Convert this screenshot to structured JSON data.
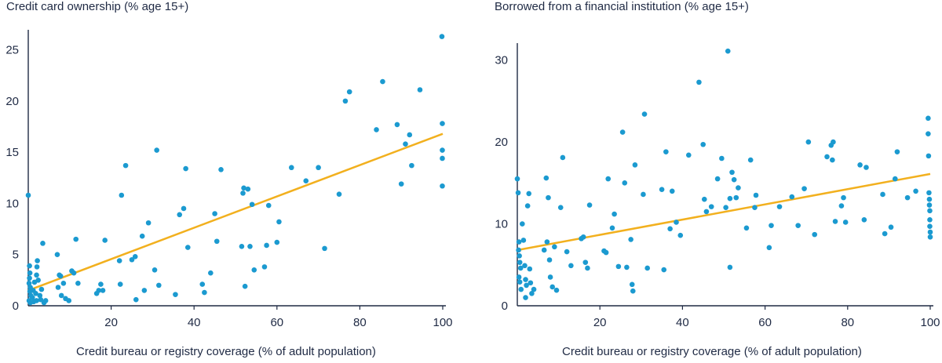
{
  "colors": {
    "point": "#1b9ad0",
    "trend": "#f2b01e",
    "axis": "#1f2a44"
  },
  "chart_data": [
    {
      "type": "scatter",
      "title": "Credit card ownership (% age 15+)",
      "xlabel": "Credit bureau or registry coverage (% of adult population)",
      "ylabel": "",
      "xlim": [
        0,
        100
      ],
      "ylim": [
        0,
        26.5
      ],
      "xticks": [
        20,
        40,
        60,
        80,
        100
      ],
      "yticks": [
        0,
        5,
        10,
        15,
        20,
        25
      ],
      "trendline": {
        "x": [
          0,
          100
        ],
        "y": [
          1.5,
          16.8
        ]
      },
      "points": [
        [
          0,
          10.8
        ],
        [
          0.3,
          3.9
        ],
        [
          0.4,
          3.2
        ],
        [
          0.3,
          2.7
        ],
        [
          0.2,
          2.2
        ],
        [
          0.5,
          1.8
        ],
        [
          0.4,
          1.4
        ],
        [
          0.6,
          1.0
        ],
        [
          0.2,
          0.5
        ],
        [
          0.5,
          0.3
        ],
        [
          1.0,
          0.8
        ],
        [
          1.2,
          1.5
        ],
        [
          1.3,
          0.4
        ],
        [
          1.5,
          2.3
        ],
        [
          1.8,
          1.2
        ],
        [
          2.0,
          0.5
        ],
        [
          2.1,
          3.8
        ],
        [
          2.2,
          4.4
        ],
        [
          2.0,
          3.0
        ],
        [
          2.4,
          2.5
        ],
        [
          2.8,
          1.0
        ],
        [
          3.0,
          0.6
        ],
        [
          3.2,
          1.6
        ],
        [
          3.5,
          6.1
        ],
        [
          3.8,
          0.3
        ],
        [
          4.2,
          0.5
        ],
        [
          7.0,
          5.0
        ],
        [
          7.2,
          1.8
        ],
        [
          7.5,
          3.0
        ],
        [
          7.8,
          2.9
        ],
        [
          8.0,
          1.0
        ],
        [
          8.5,
          2.2
        ],
        [
          9.0,
          0.7
        ],
        [
          9.8,
          0.5
        ],
        [
          10.5,
          3.4
        ],
        [
          11.0,
          3.2
        ],
        [
          11.5,
          6.5
        ],
        [
          12.0,
          2.2
        ],
        [
          16.5,
          1.2
        ],
        [
          17.0,
          1.5
        ],
        [
          17.5,
          2.1
        ],
        [
          18.0,
          1.5
        ],
        [
          18.5,
          6.4
        ],
        [
          22.0,
          4.4
        ],
        [
          22.2,
          2.1
        ],
        [
          22.5,
          10.8
        ],
        [
          23.5,
          13.7
        ],
        [
          25.0,
          4.5
        ],
        [
          25.8,
          4.8
        ],
        [
          26.0,
          0.6
        ],
        [
          27.5,
          6.8
        ],
        [
          28.0,
          1.5
        ],
        [
          29.0,
          8.1
        ],
        [
          30.5,
          3.5
        ],
        [
          31.0,
          15.2
        ],
        [
          31.5,
          2.0
        ],
        [
          35.5,
          1.1
        ],
        [
          36.5,
          8.9
        ],
        [
          37.5,
          9.5
        ],
        [
          38.0,
          13.4
        ],
        [
          38.5,
          5.7
        ],
        [
          42.0,
          2.1
        ],
        [
          42.5,
          1.3
        ],
        [
          44.0,
          3.2
        ],
        [
          45.0,
          9.0
        ],
        [
          45.5,
          6.3
        ],
        [
          46.5,
          13.3
        ],
        [
          51.5,
          5.8
        ],
        [
          51.8,
          11.0
        ],
        [
          52.0,
          11.5
        ],
        [
          52.3,
          1.9
        ],
        [
          53.0,
          11.4
        ],
        [
          53.5,
          5.8
        ],
        [
          54.0,
          9.9
        ],
        [
          54.5,
          3.5
        ],
        [
          57.0,
          3.8
        ],
        [
          57.5,
          5.9
        ],
        [
          58.0,
          9.8
        ],
        [
          60.0,
          6.2
        ],
        [
          60.5,
          8.2
        ],
        [
          63.5,
          13.5
        ],
        [
          67.0,
          12.2
        ],
        [
          70.0,
          13.5
        ],
        [
          71.5,
          5.6
        ],
        [
          75.0,
          10.9
        ],
        [
          76.5,
          20.0
        ],
        [
          77.5,
          20.9
        ],
        [
          84.0,
          17.2
        ],
        [
          85.5,
          21.9
        ],
        [
          89.0,
          17.7
        ],
        [
          90.0,
          11.9
        ],
        [
          91.0,
          15.8
        ],
        [
          92.0,
          16.7
        ],
        [
          92.5,
          13.7
        ],
        [
          94.5,
          21.1
        ],
        [
          99.8,
          26.3
        ],
        [
          99.9,
          17.8
        ],
        [
          99.9,
          15.2
        ],
        [
          99.9,
          14.4
        ],
        [
          99.9,
          11.7
        ]
      ]
    },
    {
      "type": "scatter",
      "title": "Borrowed from a financial institution (% age 15+)",
      "xlabel": "Credit bureau or registry coverage (% of adult population)",
      "ylabel": "",
      "xlim": [
        0,
        100
      ],
      "ylim": [
        0,
        31.5
      ],
      "xticks": [
        20,
        40,
        60,
        80,
        100
      ],
      "yticks": [
        0,
        10,
        20,
        30
      ],
      "trendline": {
        "x": [
          0,
          100
        ],
        "y": [
          6.8,
          16.1
        ]
      },
      "points": [
        [
          0,
          15.5
        ],
        [
          0.2,
          13.8
        ],
        [
          0.4,
          7.8
        ],
        [
          0.3,
          6.8
        ],
        [
          0.5,
          6.1
        ],
        [
          0.6,
          5.3
        ],
        [
          0.8,
          4.6
        ],
        [
          0.4,
          3.5
        ],
        [
          0.6,
          2.9
        ],
        [
          0.9,
          2.0
        ],
        [
          1.2,
          10.0
        ],
        [
          1.5,
          8.0
        ],
        [
          1.8,
          4.9
        ],
        [
          2.0,
          3.2
        ],
        [
          2.2,
          2.5
        ],
        [
          2.0,
          1.0
        ],
        [
          2.5,
          12.2
        ],
        [
          2.8,
          13.7
        ],
        [
          3.0,
          4.5
        ],
        [
          3.2,
          2.8
        ],
        [
          3.5,
          1.5
        ],
        [
          4.0,
          2.0
        ],
        [
          6.5,
          6.8
        ],
        [
          7.0,
          15.6
        ],
        [
          7.2,
          7.8
        ],
        [
          7.5,
          13.2
        ],
        [
          7.8,
          5.6
        ],
        [
          8.0,
          3.5
        ],
        [
          8.5,
          2.3
        ],
        [
          9.0,
          7.2
        ],
        [
          9.5,
          1.9
        ],
        [
          10.5,
          12.0
        ],
        [
          11.0,
          18.1
        ],
        [
          12.0,
          6.6
        ],
        [
          13.0,
          4.9
        ],
        [
          15.5,
          8.2
        ],
        [
          16.0,
          8.4
        ],
        [
          16.5,
          5.3
        ],
        [
          17.0,
          4.6
        ],
        [
          17.5,
          12.3
        ],
        [
          21.0,
          6.7
        ],
        [
          21.5,
          6.5
        ],
        [
          22.0,
          15.5
        ],
        [
          23.0,
          9.5
        ],
        [
          23.5,
          11.2
        ],
        [
          24.5,
          4.8
        ],
        [
          25.5,
          21.2
        ],
        [
          26.0,
          15.0
        ],
        [
          26.5,
          4.7
        ],
        [
          27.5,
          8.1
        ],
        [
          27.8,
          2.6
        ],
        [
          28.0,
          1.8
        ],
        [
          28.5,
          17.2
        ],
        [
          30.5,
          13.6
        ],
        [
          30.8,
          23.4
        ],
        [
          31.5,
          4.6
        ],
        [
          35.0,
          14.2
        ],
        [
          35.5,
          4.4
        ],
        [
          36.0,
          18.8
        ],
        [
          37.0,
          9.4
        ],
        [
          37.5,
          14.0
        ],
        [
          38.5,
          10.2
        ],
        [
          39.5,
          8.6
        ],
        [
          41.5,
          18.4
        ],
        [
          44.0,
          27.3
        ],
        [
          45.0,
          19.7
        ],
        [
          45.3,
          13.0
        ],
        [
          45.8,
          11.5
        ],
        [
          47.0,
          12.1
        ],
        [
          48.5,
          15.5
        ],
        [
          49.5,
          18.0
        ],
        [
          50.5,
          12.0
        ],
        [
          51.0,
          31.1
        ],
        [
          51.5,
          4.7
        ],
        [
          51.5,
          13.1
        ],
        [
          52.0,
          16.3
        ],
        [
          52.5,
          15.4
        ],
        [
          53.0,
          13.2
        ],
        [
          53.5,
          14.4
        ],
        [
          55.5,
          9.5
        ],
        [
          56.5,
          17.8
        ],
        [
          57.5,
          12.0
        ],
        [
          57.8,
          13.5
        ],
        [
          61.0,
          7.1
        ],
        [
          61.5,
          9.8
        ],
        [
          63.5,
          12.1
        ],
        [
          66.5,
          13.3
        ],
        [
          68.0,
          9.8
        ],
        [
          69.5,
          14.3
        ],
        [
          70.5,
          20.0
        ],
        [
          72.0,
          8.7
        ],
        [
          75.0,
          18.2
        ],
        [
          76.0,
          19.6
        ],
        [
          76.3,
          17.8
        ],
        [
          76.5,
          20.0
        ],
        [
          77.0,
          10.3
        ],
        [
          78.5,
          12.2
        ],
        [
          79.0,
          13.2
        ],
        [
          79.5,
          10.2
        ],
        [
          83.0,
          17.2
        ],
        [
          84.0,
          10.5
        ],
        [
          84.5,
          16.9
        ],
        [
          88.5,
          13.6
        ],
        [
          89.0,
          8.8
        ],
        [
          90.5,
          9.6
        ],
        [
          91.5,
          15.5
        ],
        [
          92.0,
          18.8
        ],
        [
          94.5,
          13.2
        ],
        [
          96.5,
          14.0
        ],
        [
          99.5,
          22.9
        ],
        [
          99.5,
          21.0
        ],
        [
          99.6,
          18.3
        ],
        [
          99.7,
          13.8
        ],
        [
          99.8,
          13.0
        ],
        [
          99.8,
          12.3
        ],
        [
          99.9,
          11.6
        ],
        [
          99.9,
          10.5
        ],
        [
          99.9,
          9.7
        ],
        [
          100,
          9.0
        ],
        [
          100,
          8.4
        ]
      ]
    }
  ]
}
